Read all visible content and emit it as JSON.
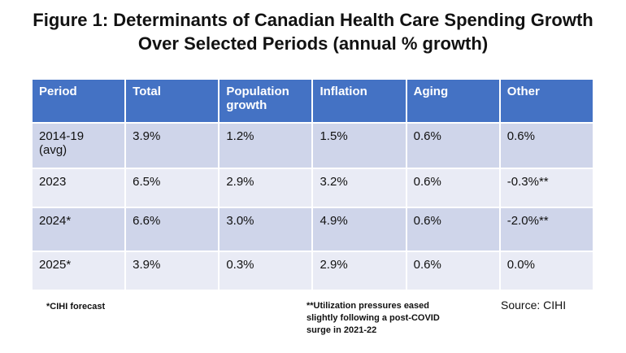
{
  "title": {
    "line1": "Figure 1: Determinants of Canadian Health Care Spending Growth",
    "line2": "Over Selected Periods (annual % growth)"
  },
  "table": {
    "headers": [
      "Period",
      "Total",
      "Population growth",
      "Inflation",
      "Aging",
      "Other"
    ],
    "rows": [
      [
        "2014-19 (avg)",
        "3.9%",
        "1.2%",
        "1.5%",
        "0.6%",
        "0.6%"
      ],
      [
        "2023",
        "6.5%",
        "2.9%",
        "3.2%",
        "0.6%",
        "-0.3%**"
      ],
      [
        "2024*",
        "6.6%",
        "3.0%",
        "4.9%",
        "0.6%",
        "-2.0%**"
      ],
      [
        "2025*",
        "3.9%",
        "0.3%",
        "2.9%",
        "0.6%",
        "0.0%"
      ]
    ]
  },
  "footnotes": {
    "forecast": "*CIHI forecast",
    "utilization": "**Utilization pressures eased slightly following a post-COVID surge in 2021-22",
    "source": "Source: CIHI"
  },
  "colors": {
    "header_bg": "#4472C4",
    "band_dark": "#CFD5EA",
    "band_light": "#E9EBF5",
    "header_text": "#FFFFFF",
    "body_text": "#111111",
    "page_bg": "#FFFFFF"
  }
}
